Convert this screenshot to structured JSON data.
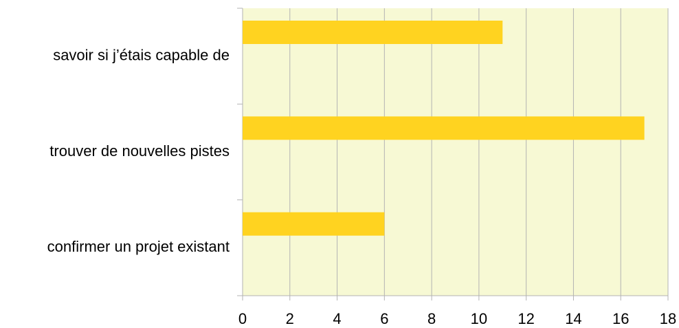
{
  "chart_data": {
    "type": "hbar",
    "categories": [
      "savoir si j’étais capable de",
      "trouver de nouvelles pistes",
      "confirmer un projet existant"
    ],
    "values": [
      11,
      17,
      6
    ],
    "color": "#ffd320",
    "background": "#f7f9d4",
    "xlim": [
      0,
      18
    ],
    "xticks": [
      0,
      2,
      4,
      6,
      8,
      10,
      12,
      14,
      16,
      18
    ],
    "grid": true
  }
}
